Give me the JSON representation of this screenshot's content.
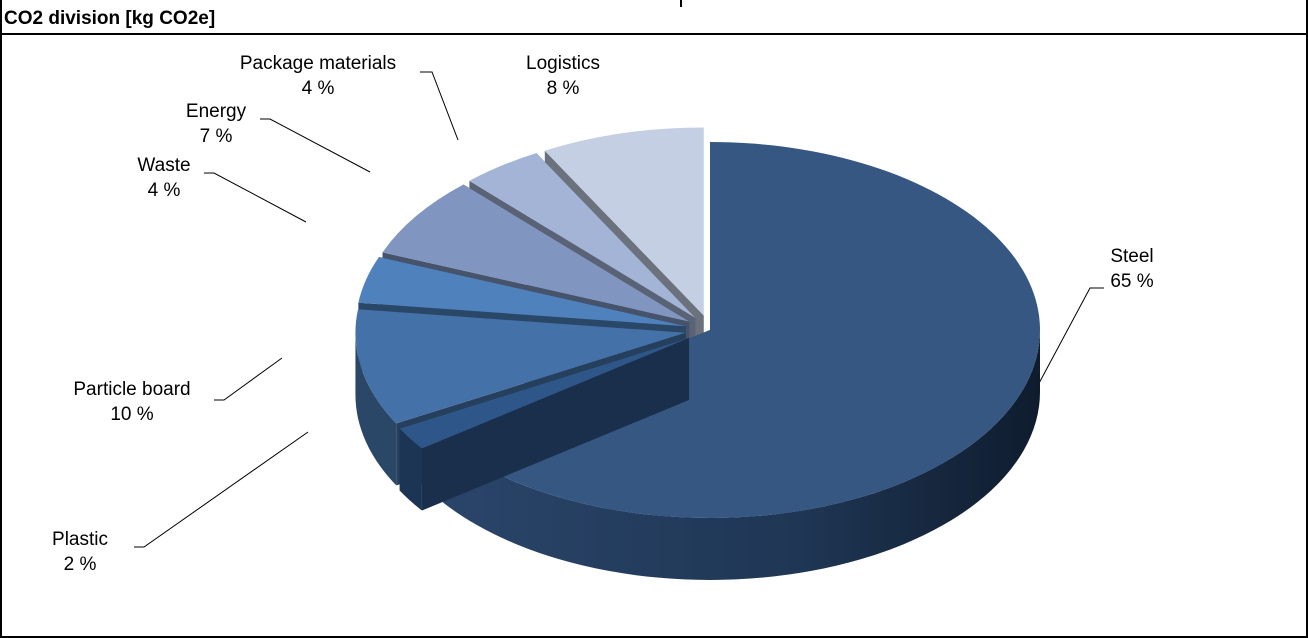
{
  "chart_data": {
    "type": "pie",
    "title": "CO2 division [kg CO2e]",
    "slices": [
      {
        "label": "Steel",
        "value": 65,
        "pct_label": "65 %",
        "color": "#365781",
        "exploded": false
      },
      {
        "label": "Plastic",
        "value": 2,
        "pct_label": "2 %",
        "color": "#2f5688",
        "exploded": true
      },
      {
        "label": "Particle board",
        "value": 10,
        "pct_label": "10 %",
        "color": "#4472a8",
        "exploded": true
      },
      {
        "label": "Waste",
        "value": 4,
        "pct_label": "4 %",
        "color": "#4f81bd",
        "exploded": true
      },
      {
        "label": "Energy",
        "value": 7,
        "pct_label": "7 %",
        "color": "#8096c0",
        "exploded": true
      },
      {
        "label": "Package materials",
        "value": 4,
        "pct_label": "4 %",
        "color": "#a3b4d6",
        "exploded": true
      },
      {
        "label": "Logistics",
        "value": 8,
        "pct_label": "8 %",
        "color": "#c5cfe3",
        "exploded": true
      }
    ],
    "style": "3d-exploded",
    "legend": "none"
  }
}
